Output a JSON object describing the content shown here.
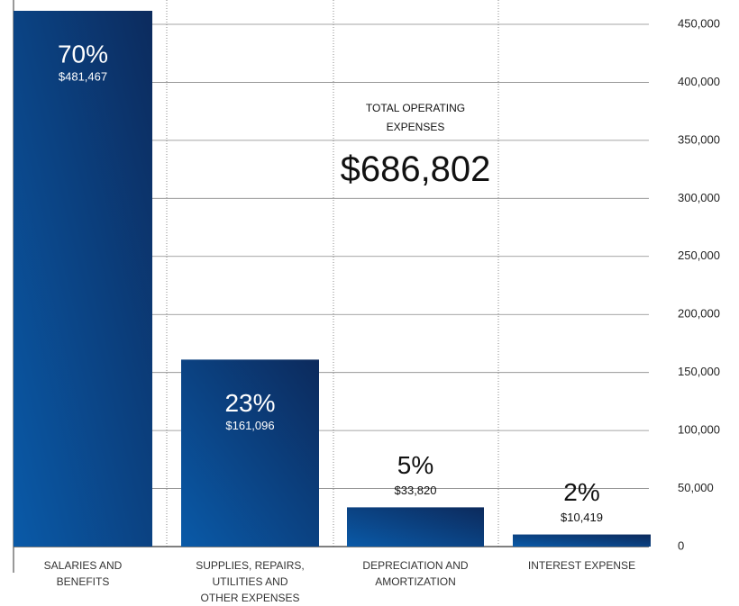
{
  "chart_data": {
    "type": "bar",
    "categories": [
      "SALARIES AND BENEFITS",
      "SUPPLIES, REPAIRS, UTILITIES AND OTHER EXPENSES",
      "DEPRECIATION AND AMORTIZATION",
      "INTEREST EXPENSE"
    ],
    "values": [
      481467,
      161096,
      33820,
      10419
    ],
    "value_labels": [
      "$481,467",
      "$161,096",
      "$33,820",
      "$10,419"
    ],
    "shares": [
      70,
      23,
      5,
      2
    ],
    "share_labels": [
      "70%",
      "23%",
      "5%",
      "2%"
    ],
    "color": [
      "#0a5aa8",
      "#0c2a5c"
    ],
    "annotation": {
      "title": "TOTAL OPERATING EXPENSES",
      "value": "$686,802"
    },
    "ylim": [
      0,
      450000
    ],
    "yticks": [
      0,
      {
        "value": 50000,
        "label": "50,000"
      },
      {
        "value": 100000,
        "label": "100,000"
      },
      {
        "value": 150000,
        "label": "150,000"
      },
      {
        "value": 200000,
        "label": "200,000"
      },
      {
        "value": 250000,
        "label": "250,000"
      },
      {
        "value": 300000,
        "label": "300,000"
      },
      {
        "value": 350000,
        "label": "350,000"
      },
      {
        "value": 400000,
        "label": "400,000"
      },
      {
        "value": 450000,
        "label": "450,000"
      }
    ],
    "grid": true
  }
}
